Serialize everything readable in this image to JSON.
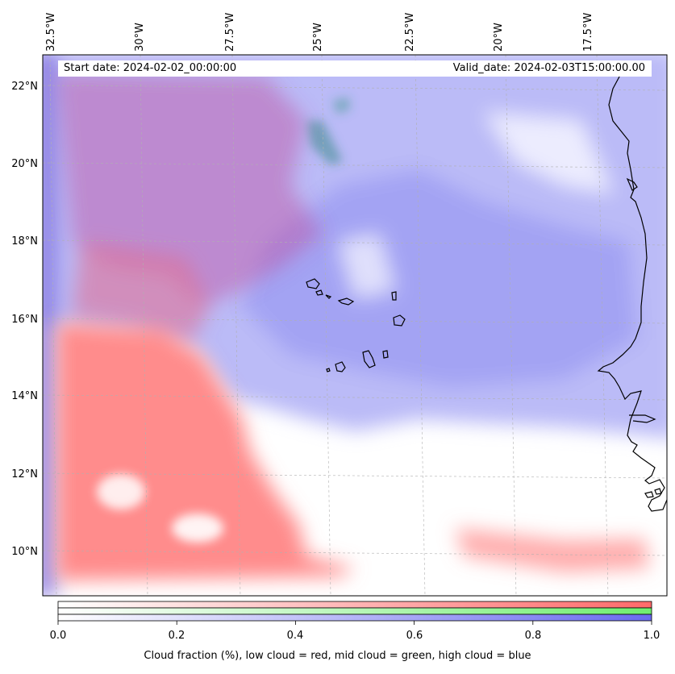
{
  "map": {
    "header_left": "Start date: 2024-02-02_00:00:00",
    "header_right": "Valid_date: 2024-02-03T15:00:00.00",
    "longitude_labels": [
      "32.5°W",
      "30°W",
      "27.5°W",
      "25°W",
      "22.5°W",
      "20°W",
      "17.5°W"
    ],
    "latitude_labels": [
      "22°N",
      "20°N",
      "18°N",
      "16°N",
      "14°N",
      "12°N",
      "10°N"
    ],
    "colors": {
      "low_cloud": "#ff7070",
      "mid_cloud": "#70ee70",
      "high_cloud": "#7070f0",
      "coastline": "#000000"
    }
  },
  "colorbar": {
    "tick_labels": [
      "0.0",
      "0.2",
      "0.4",
      "0.6",
      "0.8",
      "1.0"
    ],
    "caption": "Cloud fraction (%), low cloud = red, mid cloud = green, high cloud = blue"
  }
}
